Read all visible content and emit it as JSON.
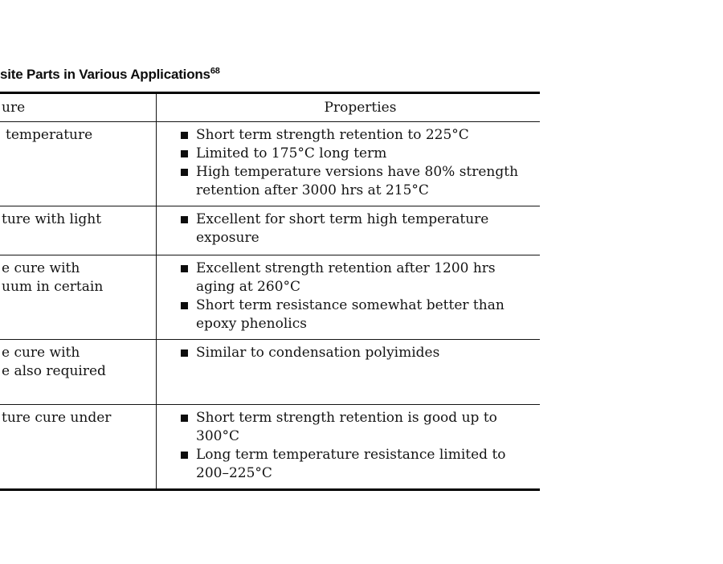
{
  "title": {
    "text_fragment": "site Parts in Various Applications",
    "superscript": "68"
  },
  "table": {
    "header": {
      "left_fragment": "ure",
      "properties_label": "Properties"
    },
    "rows": [
      {
        "cure_fragment_lines": [
          "temperature"
        ],
        "properties": [
          "Short term strength retention to 225°C",
          "Limited to 175°C long term",
          "High temperature versions have 80% strength retention after 3000 hrs at 215°C"
        ]
      },
      {
        "cure_fragment_lines": [
          "ture with light"
        ],
        "properties": [
          "Excellent for short term high temperature exposure"
        ]
      },
      {
        "cure_fragment_lines": [
          "e cure with",
          "uum in certain"
        ],
        "properties": [
          "Excellent strength retention after 1200 hrs aging at 260°C",
          "Short term resistance somewhat better than epoxy phenolics"
        ]
      },
      {
        "cure_fragment_lines": [
          "e cure with",
          "e also required"
        ],
        "properties": [
          "Similar to condensation polyimides"
        ]
      },
      {
        "cure_fragment_lines": [
          "ture cure under"
        ],
        "properties": [
          "Short term strength retention is good up to 300°C",
          "Long term temperature resistance limited to 200–225°C"
        ]
      }
    ]
  },
  "colors": {
    "background": "#ffffff",
    "text": "#141414",
    "border": "#000000",
    "bullet": "#0d0d0d"
  }
}
